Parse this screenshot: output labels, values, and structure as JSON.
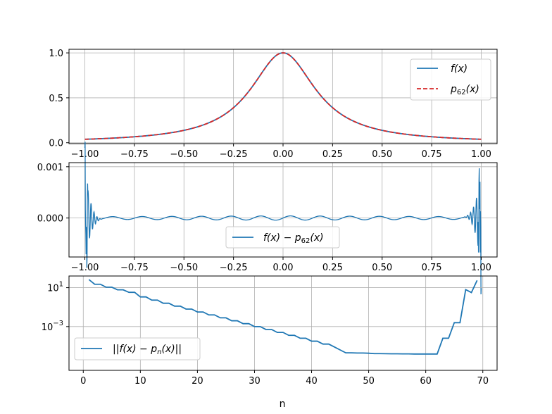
{
  "colors": {
    "f": "#1f77b4",
    "p": "#d62728",
    "err": "#1f77b4",
    "norm": "#1f77b4"
  },
  "chart_data": [
    {
      "type": "line",
      "title": "",
      "xlabel": "",
      "ylabel": "",
      "xlim": [
        -1.08,
        1.08
      ],
      "ylim": [
        -0.01,
        1.04
      ],
      "xticks": [
        -1.0,
        -0.75,
        -0.5,
        -0.25,
        0.0,
        0.25,
        0.5,
        0.75,
        1.0
      ],
      "xtick_labels": [
        "−1.00",
        "−0.75",
        "−0.50",
        "−0.25",
        "0.00",
        "0.25",
        "0.50",
        "0.75",
        "1.00"
      ],
      "yticks": [
        0.0,
        0.5,
        1.0
      ],
      "ytick_labels": [
        "0.0",
        "0.5",
        "1.0"
      ],
      "grid": true,
      "legend_position": "upper-right",
      "function": "1/(1+25x^2)",
      "x_range": [
        -1.0,
        1.0
      ],
      "series": [
        {
          "name": "f(x)",
          "style": "solid",
          "color_key": "f"
        },
        {
          "name": "p62(x)",
          "style": "dashed",
          "color_key": "p"
        }
      ]
    },
    {
      "type": "line",
      "title": "",
      "xlabel": "",
      "ylabel": "",
      "xlim": [
        -1.08,
        1.08
      ],
      "ylim": [
        -0.00076,
        0.00108
      ],
      "xticks": [
        -1.0,
        -0.75,
        -0.5,
        -0.25,
        0.0,
        0.25,
        0.5,
        0.75,
        1.0
      ],
      "xtick_labels": [
        "−1.00",
        "−0.75",
        "−0.50",
        "−0.25",
        "0.00",
        "0.25",
        "0.50",
        "0.75",
        "1.00"
      ],
      "yticks": [
        0.0,
        0.001
      ],
      "ytick_labels": [
        "0.000",
        "0.001"
      ],
      "grid": true,
      "legend_position": "lower-center",
      "series": [
        {
          "name": "f(x) − p62(x)",
          "style": "solid",
          "color_key": "err"
        }
      ]
    },
    {
      "type": "line",
      "title": "",
      "xlabel": "n",
      "ylabel": "",
      "xlim": [
        -2.5,
        72.5
      ],
      "ylog": true,
      "ylim_log10": [
        -7.5,
        2.2
      ],
      "xticks": [
        0,
        10,
        20,
        30,
        40,
        50,
        60,
        70
      ],
      "xtick_labels": [
        "0",
        "10",
        "20",
        "30",
        "40",
        "50",
        "60",
        "70"
      ],
      "yticks_log10": [
        1,
        -3
      ],
      "ytick_labels": [
        "10",
        "10"
      ],
      "ytick_exponents": [
        "1",
        "−3"
      ],
      "grid": true,
      "legend_position": "lower-left",
      "series": [
        {
          "name": "||f(x) − pn(x)||",
          "color_key": "norm",
          "x": [
            1,
            2,
            3,
            4,
            5,
            6,
            7,
            8,
            9,
            10,
            11,
            12,
            13,
            14,
            15,
            16,
            17,
            18,
            19,
            20,
            21,
            22,
            23,
            24,
            25,
            26,
            27,
            28,
            29,
            30,
            31,
            32,
            33,
            34,
            35,
            36,
            37,
            38,
            39,
            40,
            41,
            42,
            43,
            44,
            45,
            46,
            47,
            48,
            49,
            50,
            51,
            52,
            53,
            54,
            55,
            56,
            57,
            58,
            59,
            60,
            61,
            62,
            63,
            64,
            65,
            66,
            67,
            68,
            69
          ],
          "log10_y": [
            1.83,
            1.35,
            1.35,
            1.05,
            1.05,
            0.78,
            0.78,
            0.52,
            0.52,
            0.05,
            0.05,
            -0.28,
            -0.28,
            -0.6,
            -0.6,
            -0.9,
            -0.9,
            -1.2,
            -1.2,
            -1.5,
            -1.5,
            -1.8,
            -1.8,
            -2.1,
            -2.1,
            -2.4,
            -2.4,
            -2.7,
            -2.7,
            -3.0,
            -3.0,
            -3.3,
            -3.3,
            -3.6,
            -3.6,
            -3.9,
            -3.9,
            -4.2,
            -4.2,
            -4.5,
            -4.5,
            -4.8,
            -4.8,
            -5.1,
            -5.4,
            -5.7,
            -5.7,
            -5.72,
            -5.72,
            -5.74,
            -5.78,
            -5.78,
            -5.79,
            -5.8,
            -5.8,
            -5.81,
            -5.81,
            -5.82,
            -5.82,
            -5.82,
            -5.82,
            -5.82,
            -4.2,
            -4.2,
            -2.6,
            -2.6,
            0.8,
            0.5,
            1.75
          ]
        }
      ]
    }
  ]
}
